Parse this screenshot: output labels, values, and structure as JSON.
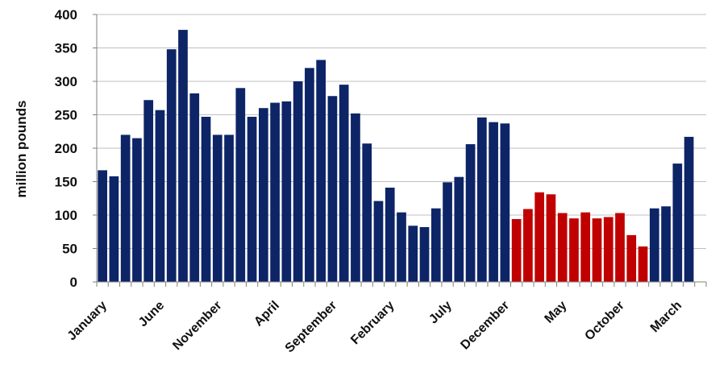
{
  "chart_data": {
    "type": "bar",
    "title": "",
    "xlabel": "",
    "ylabel": "million pounds",
    "ylim": [
      0,
      400
    ],
    "y_ticks": [
      0,
      50,
      100,
      150,
      200,
      250,
      300,
      350,
      400
    ],
    "grid": "horizontal",
    "x_tick_labels": [
      "January",
      "June",
      "November",
      "April",
      "September",
      "February",
      "July",
      "December",
      "May",
      "October",
      "March"
    ],
    "x_tick_label_indices": [
      0,
      5,
      10,
      15,
      20,
      25,
      30,
      35,
      40,
      45,
      50
    ],
    "values": [
      167,
      158,
      220,
      215,
      272,
      257,
      348,
      377,
      282,
      247,
      220,
      220,
      290,
      247,
      260,
      268,
      270,
      300,
      320,
      332,
      278,
      295,
      252,
      207,
      121,
      141,
      104,
      84,
      82,
      110,
      149,
      157,
      206,
      246,
      239,
      237,
      94,
      109,
      134,
      131,
      103,
      95,
      104,
      95,
      97,
      103,
      70,
      53,
      110,
      113,
      177,
      217
    ],
    "colors": {
      "default": "#0d2466",
      "highlight": "#c00000",
      "grid": "#bfbfbf",
      "axis": "#808080"
    },
    "highlight_range": [
      36,
      47
    ]
  }
}
